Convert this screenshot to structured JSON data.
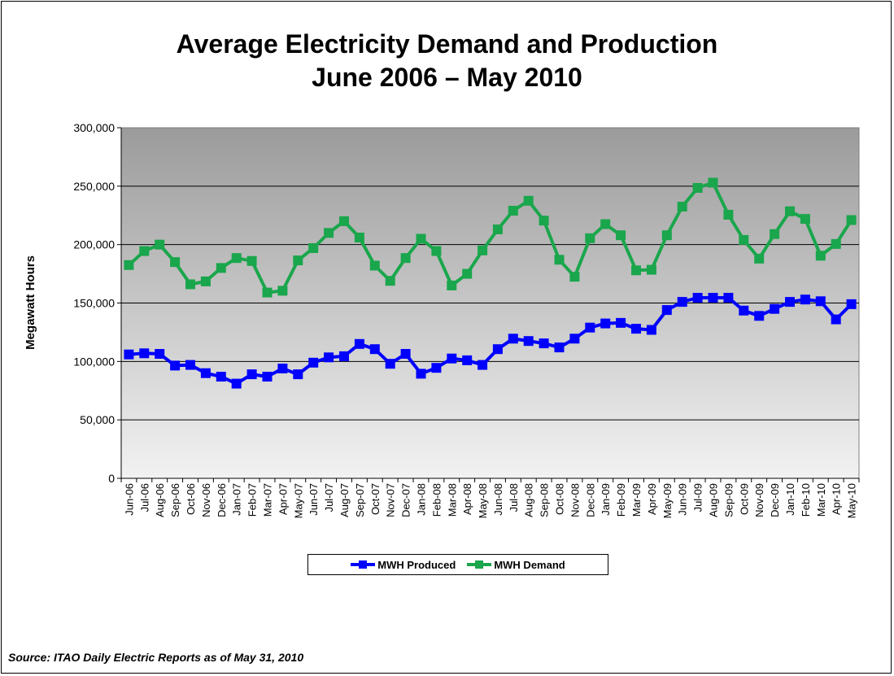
{
  "chart_data": {
    "type": "line",
    "title": "Average Electricity Demand and Production",
    "subtitle": "June 2006 – May 2010",
    "ylabel": "Megawatt Hours",
    "xlabel": "",
    "ylim": [
      0,
      300000
    ],
    "yticks": [
      "0",
      "50,000",
      "100,000",
      "150,000",
      "200,000",
      "250,000",
      "300,000"
    ],
    "grid": true,
    "legend_position": "bottom",
    "categories": [
      "Jun-06",
      "Jul-06",
      "Aug-06",
      "Sep-06",
      "Oct-06",
      "Nov-06",
      "Dec-06",
      "Jan-07",
      "Feb-07",
      "Mar-07",
      "Apr-07",
      "May-07",
      "Jun-07",
      "Jul-07",
      "Aug-07",
      "Sep-07",
      "Oct-07",
      "Nov-07",
      "Dec-07",
      "Jan-08",
      "Feb-08",
      "Mar-08",
      "Apr-08",
      "May-08",
      "Jun-08",
      "Jul-08",
      "Aug-08",
      "Sep-08",
      "Oct-08",
      "Nov-08",
      "Dec-08",
      "Jan-09",
      "Feb-09",
      "Mar-09",
      "Apr-09",
      "May-09",
      "Jun-09",
      "Jul-09",
      "Aug-09",
      "Sep-09",
      "Oct-09",
      "Nov-09",
      "Dec-09",
      "Jan-10",
      "Feb-10",
      "Mar-10",
      "Apr-10",
      "May-10"
    ],
    "series": [
      {
        "name": "MWH Produced",
        "color": "#0000ff",
        "values": [
          106000,
          107000,
          106500,
          96500,
          97000,
          90000,
          87000,
          81000,
          89000,
          87000,
          94000,
          89000,
          99000,
          103500,
          104500,
          115000,
          110500,
          98000,
          106500,
          89500,
          94500,
          102500,
          101000,
          97000,
          110500,
          119500,
          117500,
          115500,
          112000,
          119500,
          129000,
          132500,
          133000,
          128000,
          127000,
          144000,
          151000,
          154500,
          154500,
          154500,
          143500,
          139000,
          145000,
          151000,
          153000,
          151500,
          136000,
          149000
        ]
      },
      {
        "name": "MWH Demand",
        "color": "#1aa64c",
        "values": [
          182500,
          194500,
          200000,
          185000,
          166000,
          168500,
          180000,
          188500,
          186000,
          159000,
          160500,
          186500,
          197000,
          210000,
          220000,
          206000,
          182000,
          169000,
          188500,
          205000,
          194500,
          165000,
          175000,
          195000,
          213000,
          229000,
          237500,
          220500,
          187000,
          172500,
          205500,
          217500,
          208000,
          178000,
          178500,
          208000,
          232500,
          248500,
          253000,
          225500,
          204000,
          188000,
          209000,
          228500,
          222000,
          190500,
          200500,
          221000
        ]
      }
    ]
  },
  "source_text": "Source:  ITAO Daily Electric Reports as of May 31, 2010"
}
